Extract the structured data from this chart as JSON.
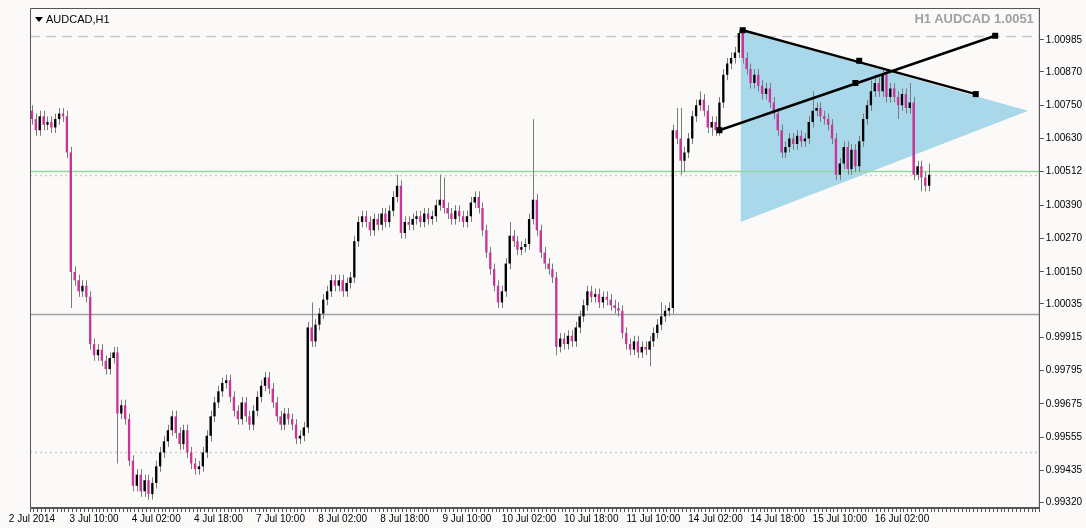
{
  "chart_data": {
    "type": "candlestick",
    "title": "AUDCAD,H1",
    "subtitle": "H1 AUDCAD 1.0051",
    "categories": [
      "2 Jul 2014",
      null,
      null,
      null,
      null,
      null,
      null,
      null,
      null,
      null,
      null,
      null,
      null,
      null,
      null,
      null,
      "3 Jul 10:00",
      null,
      null,
      null,
      null,
      null,
      null,
      null,
      null,
      null,
      null,
      null,
      null,
      null,
      null,
      null,
      "4 Jul 02:00",
      null,
      null,
      null,
      null,
      null,
      null,
      null,
      null,
      null,
      null,
      null,
      null,
      null,
      null,
      null,
      "4 Jul 18:00",
      null,
      null,
      null,
      null,
      null,
      null,
      null,
      null,
      null,
      null,
      null,
      null,
      null,
      null,
      null,
      "7 Jul 10:00",
      null,
      null,
      null,
      null,
      null,
      null,
      null,
      null,
      null,
      null,
      null,
      null,
      null,
      null,
      null,
      "8 Jul 02:00",
      null,
      null,
      null,
      null,
      null,
      null,
      null,
      null,
      null,
      null,
      null,
      null,
      null,
      null,
      null,
      "8 Jul 18:00",
      null,
      null,
      null,
      null,
      null,
      null,
      null,
      null,
      null,
      null,
      null,
      null,
      null,
      null,
      null,
      "9 Jul 10:00",
      null,
      null,
      null,
      null,
      null,
      null,
      null,
      null,
      null,
      null,
      null,
      null,
      null,
      null,
      null,
      "10 Jul 02:00",
      null,
      null,
      null,
      null,
      null,
      null,
      null,
      null,
      null,
      null,
      null,
      null,
      null,
      null,
      null,
      "10 Jul 18:00",
      null,
      null,
      null,
      null,
      null,
      null,
      null,
      null,
      null,
      null,
      null,
      null,
      null,
      null,
      null,
      "11 Jul 10:00",
      null,
      null,
      null,
      null,
      null,
      null,
      null,
      null,
      null,
      null,
      null,
      null,
      null,
      null,
      null,
      "14 Jul 02:00",
      null,
      null,
      null,
      null,
      null,
      null,
      null,
      null,
      null,
      null,
      null,
      null,
      null,
      null,
      null,
      "14 Jul 18:00",
      null,
      null,
      null,
      null,
      null,
      null,
      null,
      null,
      null,
      null,
      null,
      null,
      null,
      null,
      null,
      "15 Jul 10:00",
      null,
      null,
      null,
      null,
      null,
      null,
      null,
      null,
      null,
      null,
      null,
      null,
      null,
      null,
      null,
      "16 Jul 02:00",
      null,
      null,
      null,
      null,
      null,
      null,
      null,
      null,
      null,
      null,
      null,
      null,
      null,
      null,
      null,
      null,
      null,
      null,
      null,
      null,
      null,
      null,
      null,
      null,
      null,
      null,
      null,
      null,
      null,
      null,
      null,
      null,
      null,
      null,
      null
    ],
    "ohlc": [
      [
        1.0073,
        1.0075,
        1.0068,
        1.007
      ],
      [
        1.007,
        1.0072,
        1.0064,
        1.0066
      ],
      [
        1.0066,
        1.0073,
        1.0064,
        1.0071
      ],
      [
        1.0071,
        1.0073,
        1.0066,
        1.0068
      ],
      [
        1.0068,
        1.0071,
        1.0066,
        1.0069
      ],
      [
        1.0069,
        1.0071,
        1.0065,
        1.0067
      ],
      [
        1.0067,
        1.0072,
        1.0065,
        1.007
      ],
      [
        1.007,
        1.0074,
        1.0068,
        1.0072
      ],
      [
        1.0072,
        1.0074,
        1.0069,
        1.0071
      ],
      [
        1.0071,
        1.0073,
        1.0056,
        1.0058
      ],
      [
        1.0058,
        1.006,
        1.0002,
        1.0015
      ],
      [
        1.0015,
        1.0017,
        1.001,
        1.0012
      ],
      [
        1.0012,
        1.0014,
        1.0006,
        1.0008
      ],
      [
        1.0008,
        1.0012,
        1.0006,
        1.001
      ],
      [
        1.001,
        1.0012,
        1.0004,
        1.0006
      ],
      [
        1.0006,
        1.0008,
        0.9987,
        0.9989
      ],
      [
        0.9989,
        0.9991,
        0.9983,
        0.9985
      ],
      [
        0.9985,
        0.9989,
        0.9983,
        0.9987
      ],
      [
        0.9987,
        0.9989,
        0.9981,
        0.9983
      ],
      [
        0.9983,
        0.9985,
        0.9978,
        0.998
      ],
      [
        0.998,
        0.9986,
        0.9978,
        0.9984
      ],
      [
        0.9984,
        0.9988,
        0.9982,
        0.9986
      ],
      [
        0.9986,
        0.9988,
        0.9946,
        0.9964
      ],
      [
        0.9964,
        0.9969,
        0.9962,
        0.9967
      ],
      [
        0.9967,
        0.9969,
        0.996,
        0.9962
      ],
      [
        0.9962,
        0.9964,
        0.9945,
        0.9947
      ],
      [
        0.9947,
        0.9949,
        0.9936,
        0.9938
      ],
      [
        0.9938,
        0.9944,
        0.9936,
        0.9942
      ],
      [
        0.9942,
        0.9944,
        0.9934,
        0.9936
      ],
      [
        0.9936,
        0.9942,
        0.9934,
        0.994
      ],
      [
        0.994,
        0.9942,
        0.9933,
        0.9935
      ],
      [
        0.9935,
        0.9941,
        0.9933,
        0.9939
      ],
      [
        0.9939,
        0.9947,
        0.9937,
        0.9945
      ],
      [
        0.9945,
        0.9952,
        0.9943,
        0.995
      ],
      [
        0.995,
        0.9956,
        0.9948,
        0.9954
      ],
      [
        0.9954,
        0.996,
        0.9952,
        0.9958
      ],
      [
        0.9958,
        0.9965,
        0.9956,
        0.9963
      ],
      [
        0.9963,
        0.9965,
        0.9955,
        0.9957
      ],
      [
        0.9957,
        0.9959,
        0.9951,
        0.9953
      ],
      [
        0.9953,
        0.996,
        0.9951,
        0.9958
      ],
      [
        0.9958,
        0.996,
        0.9948,
        0.995
      ],
      [
        0.995,
        0.9952,
        0.9944,
        0.9946
      ],
      [
        0.9946,
        0.9948,
        0.9942,
        0.9944
      ],
      [
        0.9944,
        0.9947,
        0.9942,
        0.9945
      ],
      [
        0.9945,
        0.9952,
        0.9943,
        0.995
      ],
      [
        0.995,
        0.9958,
        0.9948,
        0.9956
      ],
      [
        0.9956,
        0.9965,
        0.9954,
        0.9963
      ],
      [
        0.9963,
        0.997,
        0.9961,
        0.9968
      ],
      [
        0.9968,
        0.9974,
        0.9966,
        0.9972
      ],
      [
        0.9972,
        0.9977,
        0.997,
        0.9975
      ],
      [
        0.9975,
        0.9978,
        0.9973,
        0.9976
      ],
      [
        0.9976,
        0.9978,
        0.9968,
        0.997
      ],
      [
        0.997,
        0.9972,
        0.9963,
        0.9965
      ],
      [
        0.9965,
        0.9967,
        0.996,
        0.9962
      ],
      [
        0.9962,
        0.997,
        0.996,
        0.9968
      ],
      [
        0.9968,
        0.997,
        0.9961,
        0.9963
      ],
      [
        0.9963,
        0.9965,
        0.9958,
        0.996
      ],
      [
        0.996,
        0.9967,
        0.9958,
        0.9965
      ],
      [
        0.9965,
        0.9972,
        0.9963,
        0.997
      ],
      [
        0.997,
        0.9976,
        0.9968,
        0.9974
      ],
      [
        0.9974,
        0.9979,
        0.9972,
        0.9977
      ],
      [
        0.9977,
        0.9979,
        0.9971,
        0.9973
      ],
      [
        0.9973,
        0.9975,
        0.9966,
        0.9968
      ],
      [
        0.9968,
        0.997,
        0.9961,
        0.9963
      ],
      [
        0.9963,
        0.9965,
        0.9958,
        0.996
      ],
      [
        0.996,
        0.9966,
        0.9958,
        0.9964
      ],
      [
        0.9964,
        0.9966,
        0.996,
        0.9962
      ],
      [
        0.9962,
        0.9964,
        0.9958,
        0.996
      ],
      [
        0.996,
        0.9962,
        0.9953,
        0.9955
      ],
      [
        0.9955,
        0.9958,
        0.9953,
        0.9956
      ],
      [
        0.9956,
        0.9961,
        0.9954,
        0.9959
      ],
      [
        0.9959,
        0.9997,
        0.9957,
        0.9995
      ],
      [
        0.9995,
        1.0004,
        0.9988,
        0.999
      ],
      [
        0.999,
        0.9998,
        0.9988,
        0.9996
      ],
      [
        0.9996,
        1.0002,
        0.9994,
        1.0
      ],
      [
        1.0,
        1.0007,
        0.9998,
        1.0005
      ],
      [
        1.0005,
        1.001,
        1.0003,
        1.0008
      ],
      [
        1.0008,
        1.0014,
        1.0006,
        1.0012
      ],
      [
        1.0012,
        1.0014,
        1.0008,
        1.001
      ],
      [
        1.001,
        1.0014,
        1.0008,
        1.0012
      ],
      [
        1.0012,
        1.0014,
        1.0006,
        1.0008
      ],
      [
        1.0008,
        1.0013,
        1.0006,
        1.0011
      ],
      [
        1.0011,
        1.0015,
        1.0009,
        1.0013
      ],
      [
        1.0013,
        1.0028,
        1.0011,
        1.0026
      ],
      [
        1.0026,
        1.0035,
        1.0024,
        1.0033
      ],
      [
        1.0033,
        1.0037,
        1.0031,
        1.0035
      ],
      [
        1.0035,
        1.0037,
        1.0031,
        1.0033
      ],
      [
        1.0033,
        1.0035,
        1.0028,
        1.003
      ],
      [
        1.003,
        1.0036,
        1.0028,
        1.0034
      ],
      [
        1.0034,
        1.0036,
        1.003,
        1.0032
      ],
      [
        1.0032,
        1.0038,
        1.003,
        1.0036
      ],
      [
        1.0036,
        1.0038,
        1.0031,
        1.0033
      ],
      [
        1.0033,
        1.0039,
        1.0031,
        1.0037
      ],
      [
        1.0037,
        1.0044,
        1.0035,
        1.0042
      ],
      [
        1.0042,
        1.005,
        1.004,
        1.0046
      ],
      [
        1.0046,
        1.0048,
        1.0027,
        1.0029
      ],
      [
        1.0029,
        1.0035,
        1.0027,
        1.0033
      ],
      [
        1.0033,
        1.0035,
        1.003,
        1.0032
      ],
      [
        1.0032,
        1.0036,
        1.003,
        1.0034
      ],
      [
        1.0034,
        1.0037,
        1.0032,
        1.0035
      ],
      [
        1.0035,
        1.0037,
        1.0031,
        1.0033
      ],
      [
        1.0033,
        1.0038,
        1.0031,
        1.0036
      ],
      [
        1.0036,
        1.0038,
        1.0032,
        1.0034
      ],
      [
        1.0034,
        1.0037,
        1.0032,
        1.0035
      ],
      [
        1.0035,
        1.0041,
        1.0033,
        1.0039
      ],
      [
        1.0039,
        1.005,
        1.0037,
        1.0041
      ],
      [
        1.0041,
        1.0049,
        1.0036,
        1.0038
      ],
      [
        1.0038,
        1.004,
        1.0034,
        1.0036
      ],
      [
        1.0036,
        1.0038,
        1.0032,
        1.0034
      ],
      [
        1.0034,
        1.0039,
        1.0032,
        1.0037
      ],
      [
        1.0037,
        1.0039,
        1.0033,
        1.0035
      ],
      [
        1.0035,
        1.0037,
        1.0031,
        1.0033
      ],
      [
        1.0033,
        1.0037,
        1.0031,
        1.0035
      ],
      [
        1.0035,
        1.0042,
        1.0033,
        1.004
      ],
      [
        1.004,
        1.0044,
        1.0038,
        1.0042
      ],
      [
        1.0042,
        1.0044,
        1.0036,
        1.0038
      ],
      [
        1.0038,
        1.004,
        1.0028,
        1.003
      ],
      [
        1.003,
        1.0032,
        1.002,
        1.0022
      ],
      [
        1.0022,
        1.0024,
        1.0014,
        1.0016
      ],
      [
        1.0016,
        1.0018,
        1.0008,
        1.001
      ],
      [
        1.001,
        1.0012,
        1.0002,
        1.0004
      ],
      [
        1.0004,
        1.001,
        1.0002,
        1.0008
      ],
      [
        1.0008,
        1.002,
        1.0006,
        1.0018
      ],
      [
        1.0018,
        1.0033,
        1.0016,
        1.0028
      ],
      [
        1.0028,
        1.003,
        1.0024,
        1.0026
      ],
      [
        1.0026,
        1.0028,
        1.0021,
        1.0023
      ],
      [
        1.0023,
        1.0026,
        1.0021,
        1.0024
      ],
      [
        1.0024,
        1.0027,
        1.0022,
        1.0025
      ],
      [
        1.0025,
        1.0036,
        1.0023,
        1.0034
      ],
      [
        1.0034,
        1.007,
        1.0032,
        1.0041
      ],
      [
        1.0041,
        1.0043,
        1.0028,
        1.003
      ],
      [
        1.003,
        1.0032,
        1.002,
        1.0022
      ],
      [
        1.0022,
        1.0024,
        1.0016,
        1.0018
      ],
      [
        1.0018,
        1.002,
        1.0014,
        1.0016
      ],
      [
        1.0016,
        1.0018,
        1.0011,
        1.0013
      ],
      [
        1.0013,
        1.0015,
        0.9985,
        0.9988
      ],
      [
        0.9988,
        0.9993,
        0.9986,
        0.9991
      ],
      [
        0.9991,
        0.9993,
        0.9987,
        0.9989
      ],
      [
        0.9989,
        0.9994,
        0.9987,
        0.9992
      ],
      [
        0.9992,
        0.9994,
        0.9988,
        0.999
      ],
      [
        0.999,
        0.9997,
        0.9988,
        0.9995
      ],
      [
        0.9995,
        1.0001,
        0.9993,
        0.9999
      ],
      [
        0.9999,
        1.0005,
        0.9997,
        1.0003
      ],
      [
        1.0003,
        1.001,
        1.0001,
        1.0008
      ],
      [
        1.0008,
        1.001,
        1.0004,
        1.0006
      ],
      [
        1.0006,
        1.0009,
        1.0004,
        1.0007
      ],
      [
        1.0007,
        1.0009,
        1.0002,
        1.0004
      ],
      [
        1.0004,
        1.0008,
        1.0002,
        1.0006
      ],
      [
        1.0006,
        1.0008,
        1.0003,
        1.0005
      ],
      [
        1.0005,
        1.0007,
        1.0001,
        1.0003
      ],
      [
        1.0003,
        1.0005,
        1.0,
        1.0002
      ],
      [
        1.0002,
        1.0004,
        0.9999,
        1.0001
      ],
      [
        1.0001,
        1.0003,
        0.9991,
        0.9993
      ],
      [
        0.9993,
        0.9995,
        0.9987,
        0.9989
      ],
      [
        0.9989,
        0.9991,
        0.9985,
        0.9987
      ],
      [
        0.9987,
        0.9992,
        0.9985,
        0.999
      ],
      [
        0.999,
        0.9992,
        0.9984,
        0.9986
      ],
      [
        0.9986,
        0.999,
        0.9984,
        0.9988
      ],
      [
        0.9988,
        0.999,
        0.9985,
        0.9987
      ],
      [
        0.9987,
        0.9992,
        0.9981,
        0.999
      ],
      [
        0.999,
        0.9995,
        0.9988,
        0.9993
      ],
      [
        0.9993,
        0.9998,
        0.9991,
        0.9996
      ],
      [
        0.9996,
        1.0004,
        0.9994,
        0.9999
      ],
      [
        0.9999,
        1.0003,
        0.9997,
        1.0001
      ],
      [
        1.0001,
        1.0004,
        0.9999,
        1.0002
      ],
      [
        1.0002,
        1.0068,
        1.0,
        1.0066
      ],
      [
        1.0066,
        1.0074,
        1.0061,
        1.0063
      ],
      [
        1.0063,
        1.0074,
        1.005,
        1.0055
      ],
      [
        1.0055,
        1.006,
        1.0051,
        1.0058
      ],
      [
        1.0058,
        1.0065,
        1.0056,
        1.0063
      ],
      [
        1.0063,
        1.0073,
        1.0061,
        1.0071
      ],
      [
        1.0071,
        1.0077,
        1.0069,
        1.0075
      ],
      [
        1.0075,
        1.008,
        1.0073,
        1.0077
      ],
      [
        1.0077,
        1.0079,
        1.0071,
        1.0073
      ],
      [
        1.0073,
        1.0075,
        1.0065,
        1.0067
      ],
      [
        1.0067,
        1.0071,
        1.0064,
        1.0069
      ],
      [
        1.0069,
        1.0071,
        1.0064,
        1.0066
      ],
      [
        1.0066,
        1.0078,
        1.0064,
        1.0076
      ],
      [
        1.0076,
        1.0088,
        1.0074,
        1.0086
      ],
      [
        1.0086,
        1.0092,
        1.0084,
        1.009
      ],
      [
        1.009,
        1.0094,
        1.0088,
        1.0092
      ],
      [
        1.0092,
        1.0096,
        1.009,
        1.0094
      ],
      [
        1.0094,
        1.0102,
        1.0092,
        1.0101
      ],
      [
        1.0101,
        1.0102,
        1.009,
        1.0092
      ],
      [
        1.0092,
        1.0094,
        1.0086,
        1.0088
      ],
      [
        1.0088,
        1.009,
        1.0081,
        1.0083
      ],
      [
        1.0083,
        1.0088,
        1.0081,
        1.0086
      ],
      [
        1.0086,
        1.0088,
        1.008,
        1.0082
      ],
      [
        1.0082,
        1.0084,
        1.0077,
        1.0079
      ],
      [
        1.0079,
        1.0083,
        1.0077,
        1.0081
      ],
      [
        1.0081,
        1.0083,
        1.0074,
        1.0076
      ],
      [
        1.0076,
        1.0078,
        1.007,
        1.0072
      ],
      [
        1.0072,
        1.0074,
        1.0064,
        1.0066
      ],
      [
        1.0066,
        1.0068,
        1.0056,
        1.0058
      ],
      [
        1.0058,
        1.0062,
        1.0056,
        1.006
      ],
      [
        1.006,
        1.0065,
        1.0058,
        1.0063
      ],
      [
        1.0063,
        1.0065,
        1.0059,
        1.0061
      ],
      [
        1.0061,
        1.0066,
        1.0059,
        1.0064
      ],
      [
        1.0064,
        1.0066,
        1.006,
        1.0062
      ],
      [
        1.0062,
        1.0065,
        1.006,
        1.0063
      ],
      [
        1.0063,
        1.0071,
        1.0061,
        1.0069
      ],
      [
        1.0069,
        1.008,
        1.0067,
        1.0073
      ],
      [
        1.0073,
        1.0076,
        1.0071,
        1.0074
      ],
      [
        1.0074,
        1.0076,
        1.0069,
        1.0071
      ],
      [
        1.0071,
        1.0073,
        1.0068,
        1.007
      ],
      [
        1.007,
        1.0072,
        1.0066,
        1.0068
      ],
      [
        1.0068,
        1.007,
        1.0061,
        1.0063
      ],
      [
        1.0063,
        1.0065,
        1.0048,
        1.005
      ],
      [
        1.005,
        1.0056,
        1.0048,
        1.0054
      ],
      [
        1.0054,
        1.0062,
        1.0052,
        1.006
      ],
      [
        1.006,
        1.0062,
        1.005,
        1.0052
      ],
      [
        1.0052,
        1.0061,
        1.005,
        1.0059
      ],
      [
        1.0059,
        1.0061,
        1.0051,
        1.0053
      ],
      [
        1.0053,
        1.0064,
        1.0051,
        1.0062
      ],
      [
        1.0062,
        1.0072,
        1.006,
        1.007
      ],
      [
        1.007,
        1.0077,
        1.0068,
        1.0075
      ],
      [
        1.0075,
        1.0084,
        1.0073,
        1.008
      ],
      [
        1.008,
        1.0086,
        1.0078,
        1.0083
      ],
      [
        1.0083,
        1.0085,
        1.0078,
        1.008
      ],
      [
        1.008,
        1.0088,
        1.0078,
        1.0086
      ],
      [
        1.0086,
        1.0088,
        1.0076,
        1.0078
      ],
      [
        1.0078,
        1.0083,
        1.0076,
        1.0081
      ],
      [
        1.0081,
        1.0083,
        1.0076,
        1.0078
      ],
      [
        1.0078,
        1.008,
        1.007,
        1.0075
      ],
      [
        1.0075,
        1.0081,
        1.0073,
        1.0079
      ],
      [
        1.0079,
        1.0081,
        1.0072,
        1.0074
      ],
      [
        1.0074,
        1.0083,
        1.0072,
        1.0076
      ],
      [
        1.0076,
        1.0078,
        1.0048,
        1.005
      ],
      [
        1.005,
        1.0055,
        1.0048,
        1.0053
      ],
      [
        1.0053,
        1.0055,
        1.0044,
        1.0049
      ],
      [
        1.0049,
        1.0051,
        1.0044,
        1.0046
      ],
      [
        1.0046,
        1.0054,
        1.0044,
        1.005
      ],
      null,
      null,
      null,
      null,
      null,
      null,
      null,
      null,
      null,
      null,
      null,
      null,
      null,
      null,
      null,
      null,
      null,
      null,
      null,
      null,
      null,
      null,
      null,
      null,
      null,
      null,
      null,
      null
    ],
    "ylim": [
      0.993,
      1.011
    ],
    "yticks": [
      {
        "value": 0.9932,
        "label": "0.99320"
      },
      0.99435,
      0.99555,
      0.99675,
      0.99795,
      0.99915,
      1.00035,
      {
        "value": 1.0015,
        "label": "1.00150"
      },
      {
        "value": 1.0027,
        "label": "1.00270"
      },
      {
        "value": 1.0039,
        "label": "1.00390"
      },
      1.00512,
      {
        "value": 1.0063,
        "label": "1.00630"
      },
      {
        "value": 1.0075,
        "label": "1.00750"
      },
      {
        "value": 1.0087,
        "label": "1.00870"
      },
      1.00985
    ],
    "ref_lines": [
      {
        "axis": "y",
        "value": 1.01,
        "color": "#c8c8c8",
        "line_style": "dashed"
      },
      {
        "axis": "y",
        "value": 1.0,
        "color": "#a0a0a0",
        "line_style": "solid"
      },
      {
        "axis": "y",
        "value": 0.995,
        "color": "#cccccc",
        "line_style": "dotted"
      },
      {
        "axis": "y",
        "value": 1.005,
        "color": "#cccccc",
        "line_style": "dotted"
      },
      {
        "axis": "y",
        "value": 1.00512,
        "color": "#8fd8a0",
        "line_style": "solid"
      }
    ]
  }
}
